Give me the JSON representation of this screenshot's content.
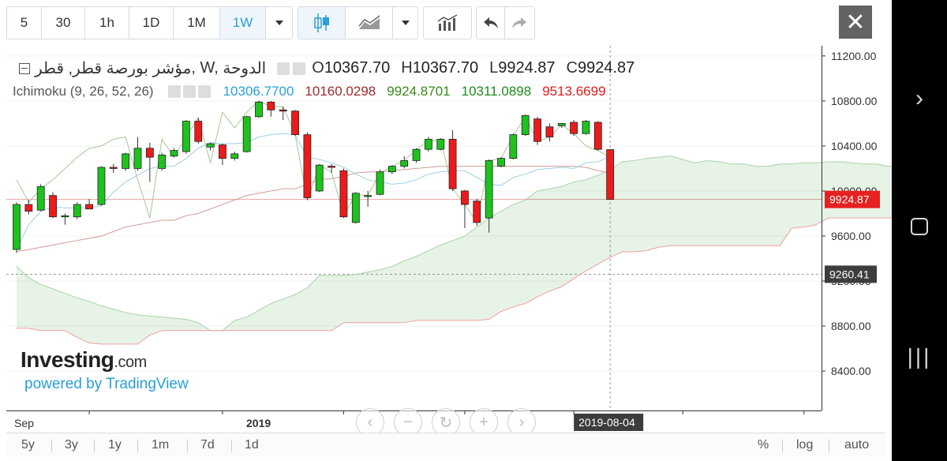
{
  "toolbar": {
    "intervals": [
      "5",
      "30",
      "1h",
      "1D",
      "1M",
      "1W"
    ],
    "active_interval": "1W",
    "close_label": "✕"
  },
  "legend": {
    "symbol": "مؤشر بورصة قطر, قطر",
    "interval": ", W, ",
    "exchange": "الدوحة",
    "o_label": "O",
    "o_value": "10367.70",
    "h_label": "H",
    "h_value": "10367.70",
    "l_label": "L",
    "l_value": "9924.87",
    "c_label": "C",
    "c_value": "9924.87",
    "indicator_name": "Ichimoku (9, 26, 52, 26)",
    "ind_values": [
      "10306.7700",
      "10160.0298",
      "9924.8701",
      "10311.0898",
      "9513.6699"
    ]
  },
  "watermark": {
    "brand": "Investing",
    "brand_suffix": ".com",
    "powered": "powered by TradingView"
  },
  "bottom": {
    "ranges": [
      "5y",
      "3y",
      "1y",
      "1m",
      "7d",
      "1d"
    ],
    "percent": "%",
    "log": "log",
    "auto": "auto"
  },
  "colors": {
    "up": "#1dc31d",
    "down": "#ec1b1b",
    "tenkan": "#26a0da",
    "kijun": "#9d2a2a",
    "chikou": "#3a8a1a",
    "cloud_green": "#1e8c1e",
    "cloud_red": "#e21b1b"
  },
  "chart_data": {
    "type": "candlestick",
    "y_ticks": [
      "11200.00",
      "10800.00",
      "10400.00",
      "10000.00",
      "9600.00",
      "9200.00",
      "8800.00",
      "8400.00"
    ],
    "y_tick_values": [
      11200,
      10800,
      10400,
      10000,
      9600,
      9200,
      8800,
      8400
    ],
    "ylim": [
      8050,
      11290
    ],
    "x_labels": [
      "Sep",
      "2019"
    ],
    "last_price": "9924.87",
    "last_price_value": 9924.87,
    "crosshair_price": "9260.41",
    "crosshair_price_value": 9260.41,
    "crosshair_date": "2019-08-04",
    "candles": [
      {
        "o": 9480,
        "h": 9900,
        "l": 9450,
        "c": 9880
      },
      {
        "o": 9880,
        "h": 9920,
        "l": 9790,
        "c": 9820
      },
      {
        "o": 9830,
        "h": 10060,
        "l": 9820,
        "c": 10040
      },
      {
        "o": 9960,
        "h": 9990,
        "l": 9760,
        "c": 9770
      },
      {
        "o": 9770,
        "h": 9800,
        "l": 9700,
        "c": 9780
      },
      {
        "o": 9770,
        "h": 9900,
        "l": 9750,
        "c": 9880
      },
      {
        "o": 9880,
        "h": 9930,
        "l": 9860,
        "c": 9840
      },
      {
        "o": 9880,
        "h": 10220,
        "l": 9870,
        "c": 10210
      },
      {
        "o": 10210,
        "h": 10240,
        "l": 10160,
        "c": 10200
      },
      {
        "o": 10200,
        "h": 10340,
        "l": 10180,
        "c": 10330
      },
      {
        "o": 10200,
        "h": 10480,
        "l": 10180,
        "c": 10380
      },
      {
        "o": 10380,
        "h": 10430,
        "l": 10080,
        "c": 10300
      },
      {
        "o": 10200,
        "h": 10340,
        "l": 10180,
        "c": 10320
      },
      {
        "o": 10310,
        "h": 10380,
        "l": 10300,
        "c": 10360
      },
      {
        "o": 10350,
        "h": 10630,
        "l": 10330,
        "c": 10620
      },
      {
        "o": 10620,
        "h": 10650,
        "l": 10420,
        "c": 10440
      },
      {
        "o": 10390,
        "h": 10430,
        "l": 10360,
        "c": 10420
      },
      {
        "o": 10410,
        "h": 10420,
        "l": 10230,
        "c": 10290
      },
      {
        "o": 10290,
        "h": 10350,
        "l": 10270,
        "c": 10330
      },
      {
        "o": 10350,
        "h": 10670,
        "l": 10340,
        "c": 10660
      },
      {
        "o": 10660,
        "h": 10800,
        "l": 10650,
        "c": 10790
      },
      {
        "o": 10790,
        "h": 10800,
        "l": 10660,
        "c": 10720
      },
      {
        "o": 10720,
        "h": 10750,
        "l": 10630,
        "c": 10710
      },
      {
        "o": 10710,
        "h": 10720,
        "l": 10490,
        "c": 10500
      },
      {
        "o": 10500,
        "h": 10520,
        "l": 9920,
        "c": 9940
      },
      {
        "o": 10000,
        "h": 10240,
        "l": 9990,
        "c": 10230
      },
      {
        "o": 10220,
        "h": 10240,
        "l": 10160,
        "c": 10210
      },
      {
        "o": 10180,
        "h": 10200,
        "l": 9760,
        "c": 9770
      },
      {
        "o": 9720,
        "h": 9990,
        "l": 9710,
        "c": 9980
      },
      {
        "o": 9950,
        "h": 10000,
        "l": 9860,
        "c": 9960
      },
      {
        "o": 9970,
        "h": 10190,
        "l": 9960,
        "c": 10170
      },
      {
        "o": 10170,
        "h": 10230,
        "l": 10150,
        "c": 10220
      },
      {
        "o": 10220,
        "h": 10310,
        "l": 10200,
        "c": 10270
      },
      {
        "o": 10270,
        "h": 10380,
        "l": 10250,
        "c": 10370
      },
      {
        "o": 10370,
        "h": 10480,
        "l": 10350,
        "c": 10460
      },
      {
        "o": 10370,
        "h": 10470,
        "l": 10360,
        "c": 10460
      },
      {
        "o": 10460,
        "h": 10540,
        "l": 10000,
        "c": 10020
      },
      {
        "o": 10000,
        "h": 10010,
        "l": 9670,
        "c": 9880
      },
      {
        "o": 9910,
        "h": 9930,
        "l": 9690,
        "c": 9720
      },
      {
        "o": 9760,
        "h": 10280,
        "l": 9630,
        "c": 10270
      },
      {
        "o": 10220,
        "h": 10300,
        "l": 10210,
        "c": 10290
      },
      {
        "o": 10290,
        "h": 10510,
        "l": 10280,
        "c": 10500
      },
      {
        "o": 10500,
        "h": 10680,
        "l": 10490,
        "c": 10670
      },
      {
        "o": 10640,
        "h": 10660,
        "l": 10410,
        "c": 10440
      },
      {
        "o": 10570,
        "h": 10600,
        "l": 10440,
        "c": 10480
      },
      {
        "o": 10580,
        "h": 10600,
        "l": 10560,
        "c": 10600
      },
      {
        "o": 10610,
        "h": 10630,
        "l": 10490,
        "c": 10510
      },
      {
        "o": 10510,
        "h": 10630,
        "l": 10500,
        "c": 10620
      },
      {
        "o": 10610,
        "h": 10620,
        "l": 10360,
        "c": 10370
      },
      {
        "o": 10367.7,
        "h": 10367.7,
        "l": 9924.87,
        "c": 9924.87
      }
    ],
    "tenkan": [
      9480,
      9700,
      9820,
      9860,
      9850,
      9850,
      9850,
      9870,
      9990,
      10080,
      10140,
      10200,
      10220,
      10220,
      10290,
      10380,
      10430,
      10420,
      10420,
      10430,
      10480,
      10500,
      10510,
      10500,
      10300,
      10280,
      10250,
      10210,
      10150,
      10100,
      10080,
      10060,
      10070,
      10100,
      10150,
      10170,
      10180,
      10180,
      10120,
      10060,
      10050,
      10120,
      10150,
      10190,
      10200,
      10210,
      10200,
      10250,
      10260,
      10306.77
    ],
    "kijun": [
      9460,
      9480,
      9500,
      9520,
      9540,
      9560,
      9580,
      9600,
      9640,
      9680,
      9700,
      9720,
      9740,
      9740,
      9780,
      9800,
      9840,
      9880,
      9920,
      9960,
      9980,
      10000,
      10020,
      10020,
      10060,
      10100,
      10110,
      10130,
      10160,
      10170,
      10170,
      10180,
      10190,
      10200,
      10210,
      10220,
      10220,
      10220,
      10220,
      10220,
      10220,
      10220,
      10220,
      10220,
      10220,
      10220,
      10220,
      10210,
      10180,
      10160.03
    ],
    "chikou": [
      10100,
      9900,
      10020,
      10100,
      10200,
      10300,
      10380,
      10400,
      10460,
      10480,
      10100,
      9760,
      10460,
      10300,
      10480,
      10650,
      10250,
      10700,
      10560,
      10700,
      10800,
      10750,
      10750,
      10500,
      9920,
      10230,
      10170,
      9780,
      9970,
      9960,
      10160,
      10220,
      10270,
      10370,
      10450,
      10450,
      10020,
      9880,
      9720,
      10270,
      10290,
      10490,
      10660,
      10440,
      10480,
      10590,
      10510,
      10400,
      10360,
      10300
    ],
    "span_a": [
      9330,
      9230,
      9170,
      9130,
      9090,
      9050,
      9020,
      8980,
      8950,
      8920,
      8900,
      8890,
      8880,
      8870,
      8860,
      8830,
      8760,
      8760,
      8850,
      8880,
      8940,
      9000,
      9040,
      9080,
      9140,
      9250,
      9250,
      9250,
      9260,
      9280,
      9300,
      9330,
      9380,
      9420,
      9470,
      9520,
      9560,
      9600,
      9680,
      9760,
      9820,
      9880,
      9920,
      10000,
      10020,
      10040,
      10080,
      10100,
      10140,
      10190,
      10260,
      10270,
      10290,
      10300,
      10311,
      10280,
      10250,
      10270,
      10260,
      10240,
      10240,
      10220,
      10220,
      10240,
      10240,
      10250,
      10250,
      10260,
      10260,
      10250,
      10240,
      10240,
      10220,
      10210
    ],
    "span_b": [
      8780,
      8780,
      8760,
      8760,
      8760,
      8700,
      8650,
      8640,
      8640,
      8640,
      8640,
      8720,
      8760,
      8760,
      8760,
      8760,
      8760,
      8760,
      8760,
      8760,
      8760,
      8760,
      8760,
      8760,
      8760,
      8760,
      8760,
      8830,
      8830,
      8830,
      8830,
      8830,
      8830,
      8850,
      8850,
      8850,
      8850,
      8850,
      8850,
      8860,
      8930,
      8970,
      9000,
      9060,
      9110,
      9150,
      9220,
      9290,
      9350,
      9410,
      9460,
      9460,
      9470,
      9500,
      9513.67,
      9513.67,
      9513.67,
      9513.67,
      9513.67,
      9513.67,
      9513.67,
      9513.67,
      9513.67,
      9513.67,
      9670,
      9680,
      9700,
      9760,
      9760,
      9760,
      9760,
      9760,
      9760,
      9760
    ]
  }
}
